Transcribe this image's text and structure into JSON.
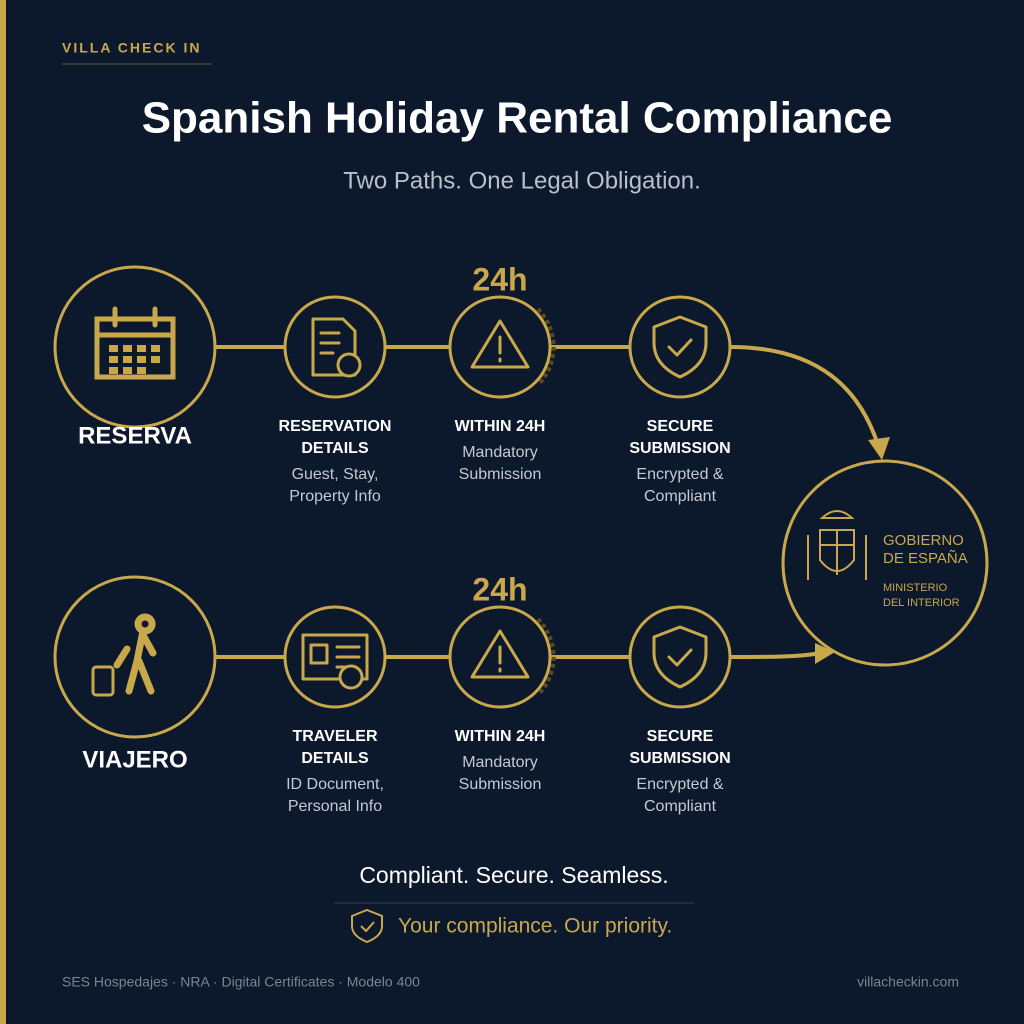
{
  "brand": "VILLA CHECK IN",
  "title": "Spanish Holiday Rental Compliance",
  "subtitle": "Two Paths. One Legal Obligation.",
  "paths": [
    {
      "label": "RESERVA",
      "timer": "24h",
      "steps": [
        {
          "title_lines": [
            "RESERVATION",
            "DETAILS"
          ],
          "desc_lines": [
            "Guest, Stay,",
            "Property Info"
          ]
        },
        {
          "title_lines": [
            "WITHIN 24H"
          ],
          "desc_lines": [
            "Mandatory",
            "Submission"
          ]
        },
        {
          "title_lines": [
            "SECURE",
            "SUBMISSION"
          ],
          "desc_lines": [
            "Encrypted &",
            "Compliant"
          ]
        }
      ]
    },
    {
      "label": "VIAJERO",
      "timer": "24h",
      "steps": [
        {
          "title_lines": [
            "TRAVELER",
            "DETAILS"
          ],
          "desc_lines": [
            "ID Document,",
            "Personal Info"
          ]
        },
        {
          "title_lines": [
            "WITHIN 24H"
          ],
          "desc_lines": [
            "Mandatory",
            "Submission"
          ]
        },
        {
          "title_lines": [
            "SECURE",
            "SUBMISSION"
          ],
          "desc_lines": [
            "Encrypted &",
            "Compliant"
          ]
        }
      ]
    }
  ],
  "destination": {
    "name_lines": [
      "GOBIERNO",
      "DE ESPAÑA"
    ],
    "dept_lines": [
      "MINISTERIO",
      "DEL INTERIOR"
    ]
  },
  "tagline": "Compliant. Secure. Seamless.",
  "promise": "Your compliance. Our priority.",
  "footer": {
    "left": "SES Hospedajes · NRA · Digital Certificates · Modelo 400",
    "right": "villacheckin.com"
  }
}
